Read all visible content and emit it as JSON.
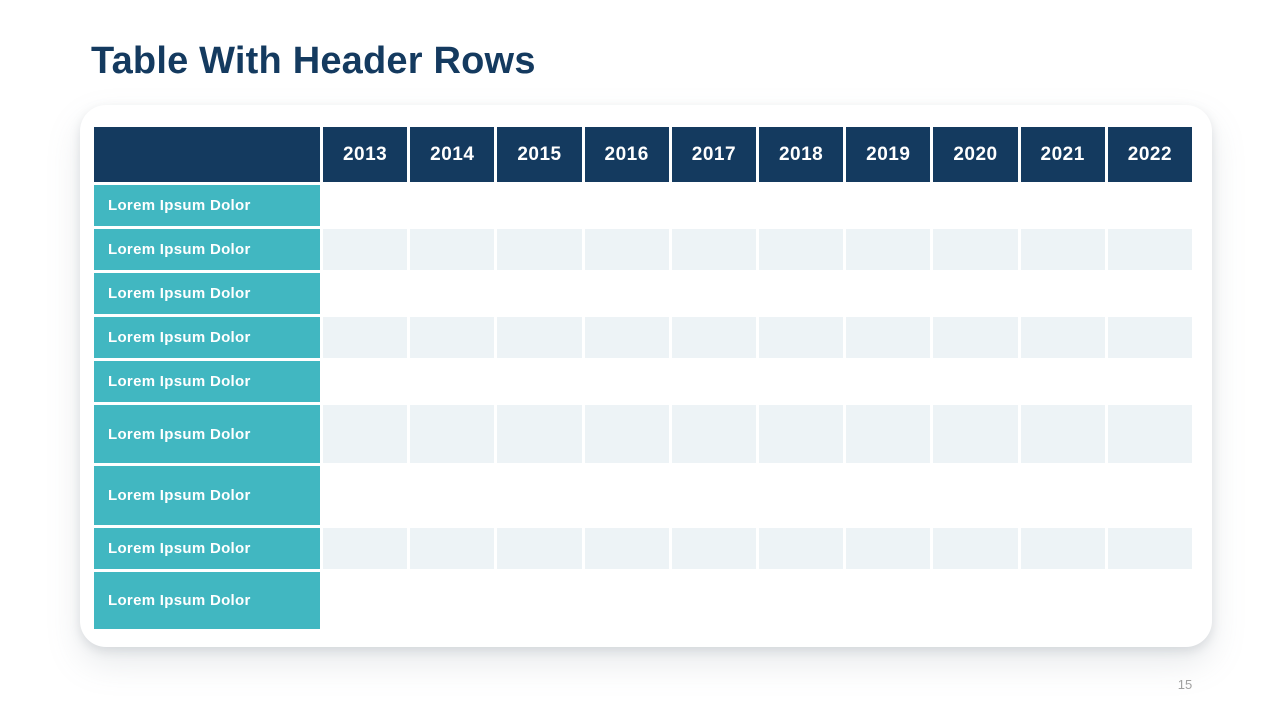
{
  "slide": {
    "title": "Table With Header Rows",
    "page_number": "15"
  },
  "colors": {
    "navy": "#143A5F",
    "teal": "#41B7C1",
    "stripe": "#EDF3F6",
    "page_number_gray": "#A0A0A0"
  },
  "table": {
    "header": {
      "corner_label": "",
      "years": [
        "2013",
        "2014",
        "2015",
        "2016",
        "2017",
        "2018",
        "2019",
        "2020",
        "2021",
        "2022"
      ]
    },
    "rows": [
      {
        "label": "Lorem Ipsum Dolor"
      },
      {
        "label": "Lorem Ipsum Dolor"
      },
      {
        "label": "Lorem Ipsum Dolor"
      },
      {
        "label": "Lorem Ipsum Dolor"
      },
      {
        "label": "Lorem Ipsum Dolor"
      },
      {
        "label": "Lorem Ipsum Dolor"
      },
      {
        "label": "Lorem Ipsum Dolor"
      },
      {
        "label": "Lorem Ipsum Dolor"
      },
      {
        "label": "Lorem Ipsum Dolor"
      }
    ]
  }
}
